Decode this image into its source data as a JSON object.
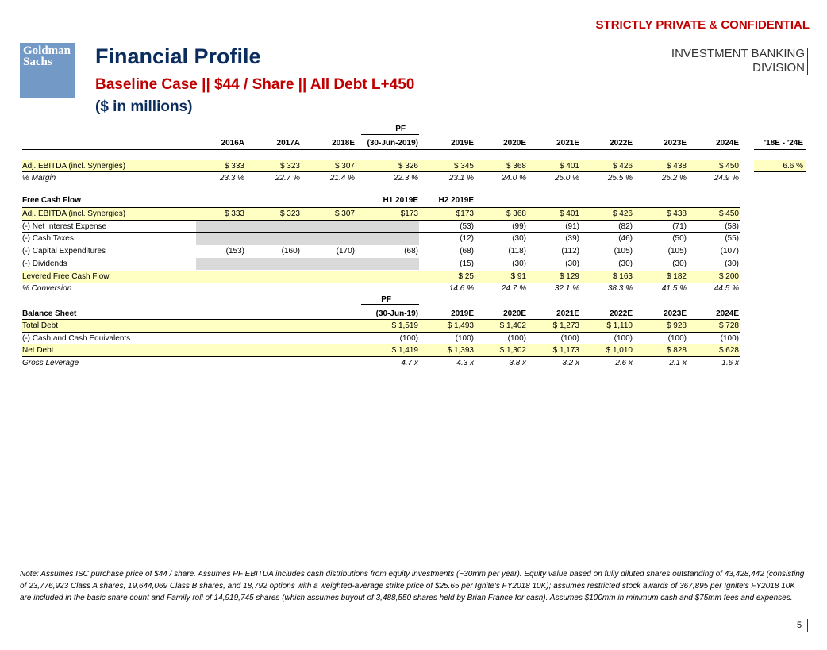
{
  "header": {
    "confidential": "STRICTLY PRIVATE & CONFIDENTIAL",
    "logo": [
      "Goldman",
      "Sachs"
    ],
    "title": "Financial Profile",
    "subtitle": "Baseline Case || $44 / Share || All Debt L+450",
    "units": "($ in millions)",
    "division": [
      "INVESTMENT BANKING",
      "DIVISION"
    ]
  },
  "summary": {
    "pf_label": "PF",
    "columns": [
      "2016A",
      "2017A",
      "2018E",
      "(30-Jun-2019)",
      "2019E",
      "2020E",
      "2021E",
      "2022E",
      "2023E",
      "2024E",
      "'18E - '24E"
    ],
    "rows": [
      {
        "label": "Adj. EBITDA (incl. Synergies)",
        "values": [
          "$ 333",
          "$ 323",
          "$ 307",
          "$ 326",
          "$ 345",
          "$ 368",
          "$ 401",
          "$ 426",
          "$ 438",
          "$ 450",
          "6.6 %"
        ]
      },
      {
        "label": "% Margin",
        "values": [
          "23.3 %",
          "22.7 %",
          "21.4 %",
          "22.3 %",
          "23.1 %",
          "24.0 %",
          "25.0 %",
          "25.5 %",
          "25.2 %",
          "24.9 %",
          null
        ]
      }
    ]
  },
  "cash_flow": {
    "title": "Free Cash Flow",
    "subheaders": [
      "H1 2019E",
      "H2 2019E"
    ],
    "rows": [
      {
        "label": "Adj. EBITDA (incl. Synergies)",
        "values": [
          "$ 333",
          "$ 323",
          "$ 307",
          "$173",
          "$173",
          "$ 368",
          "$ 401",
          "$ 426",
          "$ 438",
          "$ 450"
        ]
      },
      {
        "label": "(-) Net Interest Expense",
        "values": [
          null,
          null,
          null,
          null,
          "(53)",
          "(99)",
          "(91)",
          "(82)",
          "(71)",
          "(58)"
        ]
      },
      {
        "label": "(-) Cash Taxes",
        "values": [
          null,
          null,
          null,
          null,
          "(12)",
          "(30)",
          "(39)",
          "(46)",
          "(50)",
          "(55)"
        ]
      },
      {
        "label": "(-) Capital Expenditures",
        "values": [
          "(153)",
          "(160)",
          "(170)",
          "(68)",
          "(68)",
          "(118)",
          "(112)",
          "(105)",
          "(105)",
          "(107)"
        ]
      },
      {
        "label": "(-) Dividends",
        "values": [
          null,
          null,
          null,
          null,
          "(15)",
          "(30)",
          "(30)",
          "(30)",
          "(30)",
          "(30)"
        ]
      },
      {
        "label": "Levered Free Cash Flow",
        "values": [
          null,
          null,
          null,
          null,
          "$ 25",
          "$ 91",
          "$ 129",
          "$ 163",
          "$ 182",
          "$ 200"
        ]
      },
      {
        "label": "% Conversion",
        "values": [
          null,
          null,
          null,
          null,
          "14.6 %",
          "24.7 %",
          "32.1 %",
          "38.3 %",
          "41.5 %",
          "44.5 %"
        ]
      }
    ]
  },
  "balance_sheet": {
    "title": "Balance Sheet",
    "pf_label": "PF",
    "columns": [
      "(30-Jun-19)",
      "2019E",
      "2020E",
      "2021E",
      "2022E",
      "2023E",
      "2024E"
    ],
    "rows": [
      {
        "label": "Total Debt",
        "values": [
          "$ 1,519",
          "$ 1,493",
          "$ 1,402",
          "$ 1,273",
          "$ 1,110",
          "$ 928",
          "$ 728"
        ]
      },
      {
        "label": "(-) Cash and Cash Equivalents",
        "values": [
          "(100)",
          "(100)",
          "(100)",
          "(100)",
          "(100)",
          "(100)",
          "(100)"
        ]
      },
      {
        "label": "Net Debt",
        "values": [
          "$ 1,419",
          "$ 1,393",
          "$ 1,302",
          "$ 1,173",
          "$ 1,010",
          "$ 828",
          "$ 628"
        ]
      },
      {
        "label": "Gross Leverage",
        "values": [
          "4.7 x",
          "4.3 x",
          "3.8 x",
          "3.2 x",
          "2.6 x",
          "2.1 x",
          "1.6 x"
        ]
      }
    ]
  },
  "footer": {
    "note": "Note: Assumes ISC purchase price of $44 / share. Assumes PF EBITDA includes cash distributions from equity investments (~30mm per year). Equity value based on fully diluted shares outstanding of 43,428,442 (consisting of 23,776,923 Class A shares, 19,644,069 Class B shares, and 18,792 options with a weighted-average strike price of $25.65 per Ignite's FY2018 10K); assumes restricted stock awards of 367,895 per Ignite's FY2018 10K are included in the basic share count and Family roll of 14,919,745 shares (which assumes buyout of 3,488,550 shares held by Brian France for cash). Assumes $100mm in minimum cash and $75mm fees and expenses.",
    "page": "5"
  }
}
